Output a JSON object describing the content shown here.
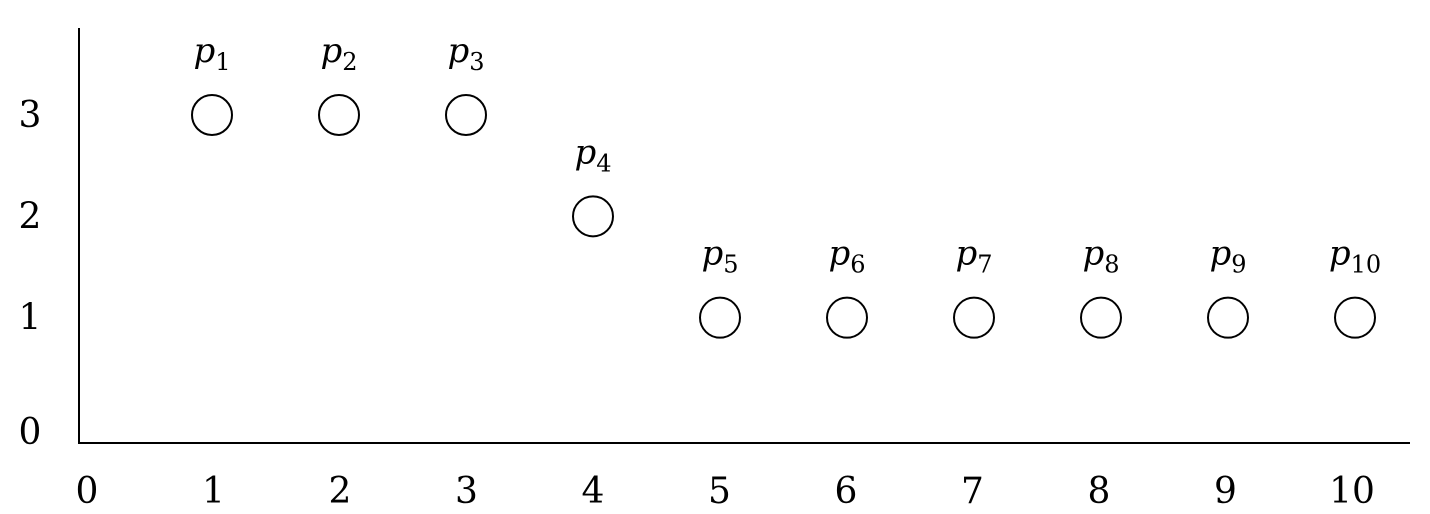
{
  "chart_data": {
    "type": "scatter",
    "title": "",
    "xlabel": "",
    "ylabel": "",
    "xlim": [
      0,
      10
    ],
    "ylim": [
      0,
      3
    ],
    "x_ticks": [
      "0",
      "1",
      "2",
      "3",
      "4",
      "5",
      "6",
      "7",
      "8",
      "9",
      "10"
    ],
    "y_ticks": [
      "0",
      "1",
      "2",
      "3"
    ],
    "grid": false,
    "marker": "hollow-circle",
    "points": [
      {
        "label": "p",
        "sub": "1",
        "x": 1,
        "y": 3
      },
      {
        "label": "p",
        "sub": "2",
        "x": 2,
        "y": 3
      },
      {
        "label": "p",
        "sub": "3",
        "x": 3,
        "y": 3
      },
      {
        "label": "p",
        "sub": "4",
        "x": 4,
        "y": 2
      },
      {
        "label": "p",
        "sub": "5",
        "x": 5,
        "y": 1
      },
      {
        "label": "p",
        "sub": "6",
        "x": 6,
        "y": 1
      },
      {
        "label": "p",
        "sub": "7",
        "x": 7,
        "y": 1
      },
      {
        "label": "p",
        "sub": "8",
        "x": 8,
        "y": 1
      },
      {
        "label": "p",
        "sub": "9",
        "x": 9,
        "y": 1
      },
      {
        "label": "p",
        "sub": "10",
        "x": 10,
        "y": 1
      }
    ],
    "colors": {
      "axis": "#000000",
      "marker_stroke": "#000000",
      "marker_fill": "#ffffff"
    }
  }
}
